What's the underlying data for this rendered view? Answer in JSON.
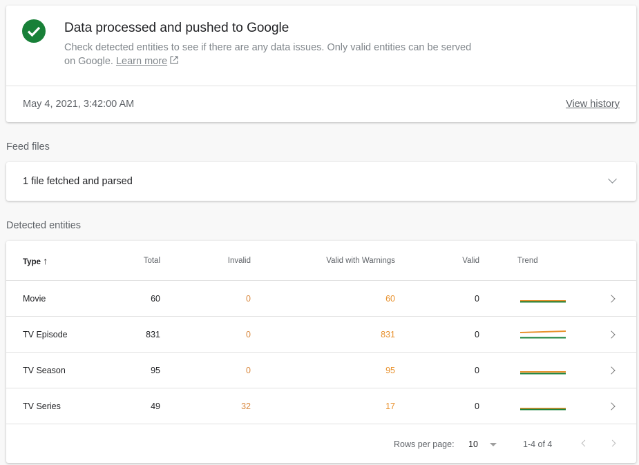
{
  "status": {
    "icon": "check-circle-icon",
    "title": "Data processed and pushed to Google",
    "description": "Check detected entities to see if there are any data issues. Only valid entities can be served on Google.",
    "learn_more": "Learn more",
    "timestamp": "May 4, 2021, 3:42:00 AM",
    "view_history": "View history"
  },
  "feed": {
    "section_label": "Feed files",
    "summary": "1 file fetched and parsed"
  },
  "entities": {
    "section_label": "Detected entities",
    "columns": [
      "Type",
      "Total",
      "Invalid",
      "Valid with Warnings",
      "Valid",
      "Trend"
    ],
    "sort": "ascending",
    "rows": [
      {
        "type": "Movie",
        "total": "60",
        "invalid": "0",
        "warnings": "60",
        "valid": "0"
      },
      {
        "type": "TV Episode",
        "total": "831",
        "invalid": "0",
        "warnings": "831",
        "valid": "0"
      },
      {
        "type": "TV Season",
        "total": "95",
        "invalid": "0",
        "warnings": "95",
        "valid": "0"
      },
      {
        "type": "TV Series",
        "total": "49",
        "invalid": "32",
        "warnings": "17",
        "valid": "0"
      }
    ],
    "footer": {
      "rows_per_page_label": "Rows per page:",
      "rows_per_page": "10",
      "range": "1-4 of 4"
    }
  },
  "colors": {
    "success": "#188038",
    "warning": "#e8912d",
    "invalid": "#d9893f"
  }
}
